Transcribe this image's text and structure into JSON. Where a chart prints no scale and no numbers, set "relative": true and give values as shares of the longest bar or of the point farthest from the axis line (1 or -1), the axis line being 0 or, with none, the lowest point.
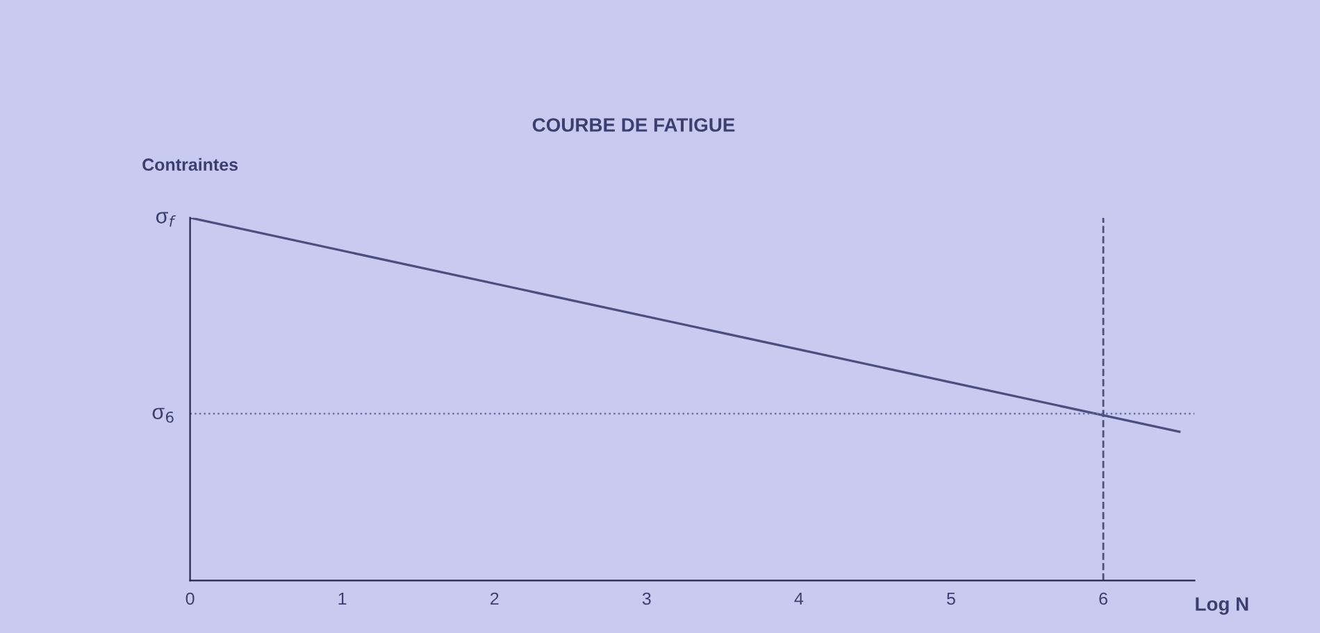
{
  "chart_data": {
    "type": "line",
    "title": "COURBE DE FATIGUE",
    "ylabel": "Contraintes",
    "xlabel": "Log N",
    "x": [
      0,
      6.5
    ],
    "relative": true,
    "series": [
      {
        "color": "#4a4f80",
        "values": [
          1,
          0.41
        ]
      }
    ],
    "xlim": [
      0,
      6.6
    ],
    "xticks": [
      0,
      1,
      2,
      3,
      4,
      5,
      6
    ],
    "tick_labels": "x",
    "grid": false,
    "marker": "none",
    "line_style": "solid",
    "ref_lines": [
      {
        "axis": "y",
        "value": 0.46,
        "label": "σ$_{6}$",
        "line_style": "dotted",
        "color": "#6a6fa0"
      },
      {
        "axis": "x",
        "value": 6,
        "line_style": "dashed",
        "color": "#4a4f80"
      }
    ],
    "annotations": [
      {
        "text": "σ$_{f}$",
        "x": 0,
        "y": 1
      }
    ]
  }
}
